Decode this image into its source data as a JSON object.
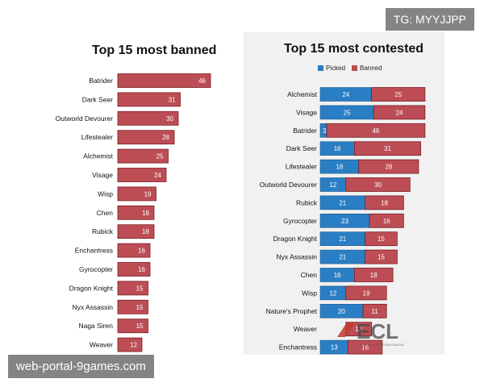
{
  "colors": {
    "picked": "#2a7ec4",
    "banned": "#bd4d55",
    "bar_stroke": "#7a1f25",
    "picked_stroke": "#1b5a8c"
  },
  "watermarks": {
    "tg": "TG: MYYJJPP",
    "portal": "web-portal-9games.com",
    "logo": "ECL ESPORTS CHAMPION LEAGUE"
  },
  "chart_data": [
    {
      "type": "bar",
      "orientation": "horizontal",
      "title": "Top 15 most banned",
      "categories": [
        "Batrider",
        "Dark Seer",
        "Outworld Devourer",
        "Lifestealer",
        "Alchemist",
        "Visage",
        "Wisp",
        "Chen",
        "Rubick",
        "Enchantress",
        "Gyrocopter",
        "Dragon Knight",
        "Nyx Assassin",
        "Naga Siren",
        "Weaver"
      ],
      "values": [
        46,
        31,
        30,
        28,
        25,
        24,
        19,
        18,
        18,
        16,
        16,
        15,
        15,
        15,
        12
      ]
    },
    {
      "type": "bar",
      "orientation": "horizontal",
      "stacked": true,
      "title": "Top 15 most contested",
      "legend": "top-left",
      "categories": [
        "Alchemist",
        "Visage",
        "Batrider",
        "Dark Seer",
        "Lifestealer",
        "Outworld Devourer",
        "Rubick",
        "Gyrocopter",
        "Dragon Knight",
        "Nyx Assassin",
        "Chen",
        "Wisp",
        "Nature's Prophet",
        "Weaver",
        "Enchantress"
      ],
      "series": [
        {
          "name": "Picked",
          "values": [
            24,
            25,
            3,
            16,
            18,
            12,
            21,
            23,
            21,
            21,
            16,
            12,
            20,
            null,
            13
          ]
        },
        {
          "name": "Banned",
          "values": [
            25,
            24,
            46,
            31,
            28,
            30,
            18,
            16,
            15,
            15,
            18,
            19,
            11,
            12,
            16
          ]
        }
      ]
    }
  ]
}
